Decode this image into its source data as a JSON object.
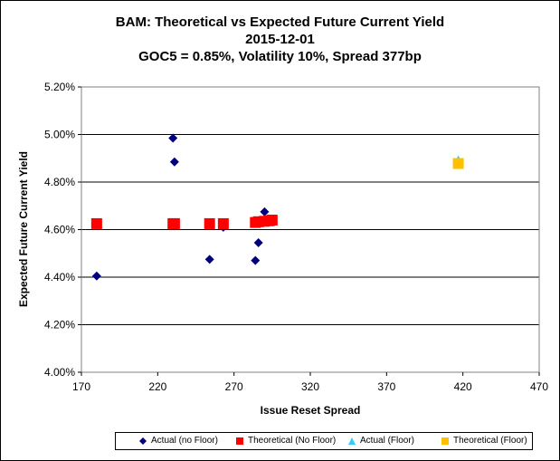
{
  "chart_data": {
    "type": "scatter",
    "title": "BAM: Theoretical vs Expected Future Current Yield",
    "subtitle_date": "2015-12-01",
    "subtitle_params": "GOC5 = 0.85%, Volatility 10%, Spread 377bp",
    "xlabel": "Issue Reset Spread",
    "ylabel": "Expected Future Current Yield",
    "xlim": [
      170,
      470
    ],
    "ylim": [
      4.0,
      5.2
    ],
    "xticks": [
      "170",
      "220",
      "270",
      "320",
      "370",
      "420",
      "470"
    ],
    "xtick_values": [
      170,
      220,
      270,
      320,
      370,
      420,
      470
    ],
    "yticks": [
      "4.00%",
      "4.20%",
      "4.40%",
      "4.60%",
      "4.80%",
      "5.00%",
      "5.20%"
    ],
    "ytick_values": [
      4.0,
      4.2,
      4.4,
      4.6,
      4.8,
      5.0,
      5.2
    ],
    "grid": "horizontal",
    "legend_position": "bottom",
    "series": [
      {
        "name": "Actual (no Floor)",
        "marker": "diamond",
        "color": "#000080",
        "points": [
          {
            "x": 180,
            "y": 4.405
          },
          {
            "x": 230,
            "y": 4.985
          },
          {
            "x": 231,
            "y": 4.885
          },
          {
            "x": 254,
            "y": 4.475
          },
          {
            "x": 263,
            "y": 4.61
          },
          {
            "x": 284,
            "y": 4.47
          },
          {
            "x": 286,
            "y": 4.545
          },
          {
            "x": 290,
            "y": 4.675
          },
          {
            "x": 293,
            "y": 4.645
          }
        ]
      },
      {
        "name": "Theoretical (No Floor)",
        "marker": "square",
        "color": "#ff0000",
        "points": [
          {
            "x": 180,
            "y": 4.625
          },
          {
            "x": 230,
            "y": 4.625
          },
          {
            "x": 231,
            "y": 4.625
          },
          {
            "x": 254,
            "y": 4.625
          },
          {
            "x": 263,
            "y": 4.625
          },
          {
            "x": 284,
            "y": 4.63
          },
          {
            "x": 286,
            "y": 4.633
          },
          {
            "x": 290,
            "y": 4.635
          },
          {
            "x": 293,
            "y": 4.637
          },
          {
            "x": 295,
            "y": 4.64
          }
        ]
      },
      {
        "name": "Actual (Floor)",
        "marker": "triangle",
        "color": "#33ccff",
        "points": [
          {
            "x": 417,
            "y": 4.893
          }
        ]
      },
      {
        "name": "Theoretical (Floor)",
        "marker": "square",
        "color": "#ffc000",
        "points": [
          {
            "x": 417,
            "y": 4.878
          }
        ]
      }
    ]
  }
}
